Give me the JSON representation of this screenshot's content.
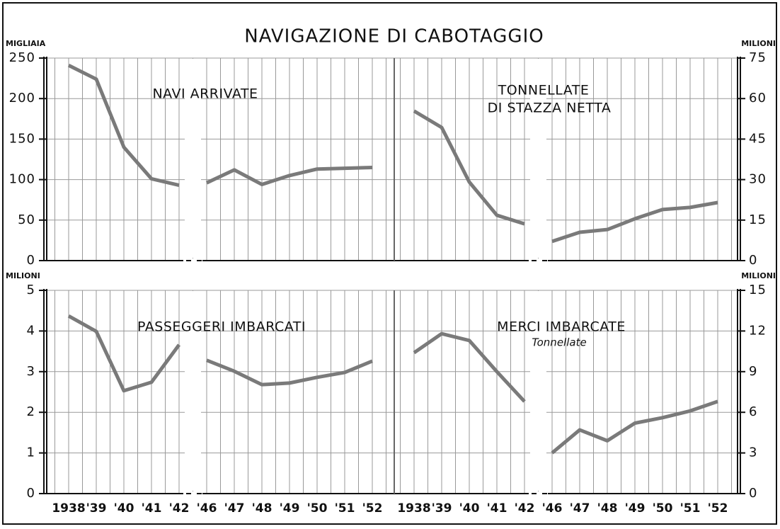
{
  "title": "NAVIGAZIONE DI CABOTAGGIO",
  "chart_data": [
    {
      "type": "line",
      "title": [
        "NAVI ARRIVATE"
      ],
      "y_label": "MIGLIAIA",
      "axis_side": "left",
      "values": [
        241,
        224,
        140,
        101,
        93,
        96,
        112,
        94,
        105,
        113,
        114,
        115
      ],
      "color": "#7a7a7a",
      "ylim": [
        0,
        250
      ],
      "yticks": [
        0,
        50,
        100,
        150,
        200,
        250
      ],
      "x_break_after": 4,
      "grid": true
    },
    {
      "type": "line",
      "title": [
        "TONNELLATE",
        "DI STAZZA NETTA"
      ],
      "y_label": "MILIONI",
      "axis_side": "right",
      "values": [
        55.4,
        49.3,
        29.1,
        16.8,
        13.6,
        7.1,
        10.5,
        11.5,
        15.5,
        18.9,
        19.7,
        21.5
      ],
      "color": "#7a7a7a",
      "ylim": [
        0,
        75
      ],
      "yticks": [
        0,
        15,
        30,
        45,
        60,
        75
      ],
      "x_break_after": 4,
      "grid": true
    },
    {
      "type": "line",
      "title": [
        "PASSEGGERI IMBARCATI"
      ],
      "y_label": "MILIONI",
      "axis_side": "left",
      "categories": [
        "1938",
        "'39",
        "'40",
        "'41",
        "'42",
        "'46",
        "'47",
        "'48",
        "'49",
        "'50",
        "'51",
        "'52"
      ],
      "values": [
        4.37,
        3.99,
        2.53,
        2.74,
        3.66,
        3.28,
        3.01,
        2.68,
        2.72,
        2.86,
        2.98,
        3.26
      ],
      "color": "#7a7a7a",
      "ylim": [
        0,
        5
      ],
      "yticks": [
        0,
        1,
        2,
        3,
        4,
        5
      ],
      "x_break_after": 4,
      "grid": true
    },
    {
      "type": "line",
      "title": [
        "MERCI IMBARCATE"
      ],
      "subtitle": "Tonnellate",
      "y_label": "MILIONI",
      "axis_side": "right",
      "categories": [
        "1938",
        "'39",
        "'40",
        "'41",
        "'42",
        "'46",
        "'47",
        "'48",
        "'49",
        "'50",
        "'51",
        "'52"
      ],
      "values": [
        10.4,
        11.8,
        11.3,
        9.0,
        6.8,
        3.0,
        4.7,
        3.9,
        5.2,
        5.6,
        6.1,
        6.8
      ],
      "color": "#7a7a7a",
      "ylim": [
        0,
        15
      ],
      "yticks": [
        0,
        3,
        6,
        9,
        12,
        15
      ],
      "x_break_after": 4,
      "grid": true
    }
  ]
}
